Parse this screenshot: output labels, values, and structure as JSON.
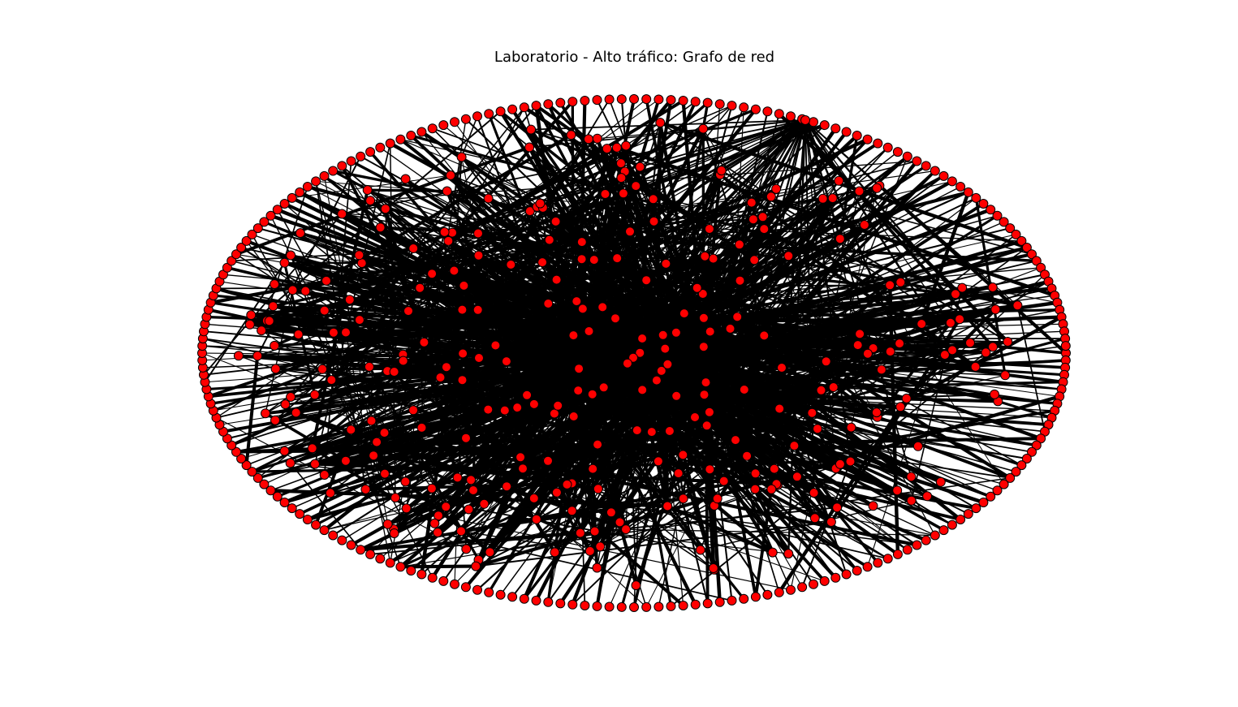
{
  "title": "Laboratorio - Alto tráfico: Grafo de red",
  "colors": {
    "background": "#ffffff",
    "node_fill": "#ff0000",
    "node_stroke": "#000000",
    "edge": "#000000"
  },
  "graph": {
    "layout": "spring-with-outer-ellipse",
    "node_shape": "circle",
    "has_edge_weights": true
  }
}
